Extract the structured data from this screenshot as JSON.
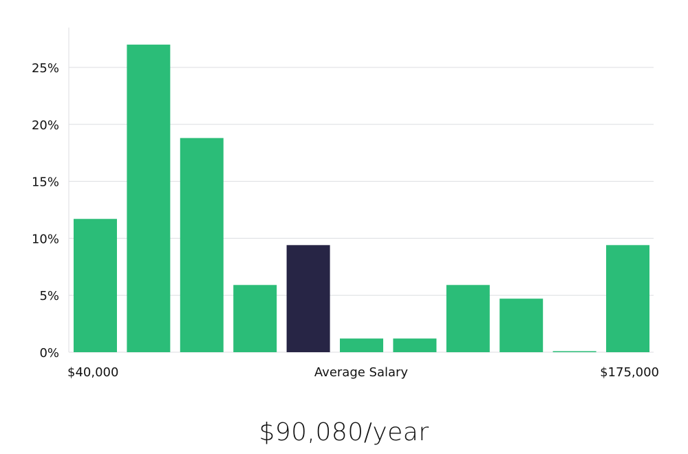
{
  "chart_data": {
    "type": "bar",
    "title": "",
    "xlabel": "Average Salary",
    "ylabel": "",
    "x_range_labels": {
      "min": "$40,000",
      "max": "$175,000"
    },
    "ylim": [
      0,
      28.5
    ],
    "yticks": [
      0,
      5,
      10,
      15,
      20,
      25
    ],
    "ytick_labels": [
      "0%",
      "5%",
      "10%",
      "15%",
      "20%",
      "25%"
    ],
    "values": [
      11.7,
      27.0,
      18.8,
      5.9,
      9.4,
      1.2,
      1.2,
      5.9,
      4.7,
      0.05,
      9.4
    ],
    "highlight_index": 4,
    "colors": {
      "bar": "#2bbd78",
      "highlight": "#272545"
    },
    "grid": true
  },
  "summary": {
    "salary_text": "$90,080/year"
  }
}
